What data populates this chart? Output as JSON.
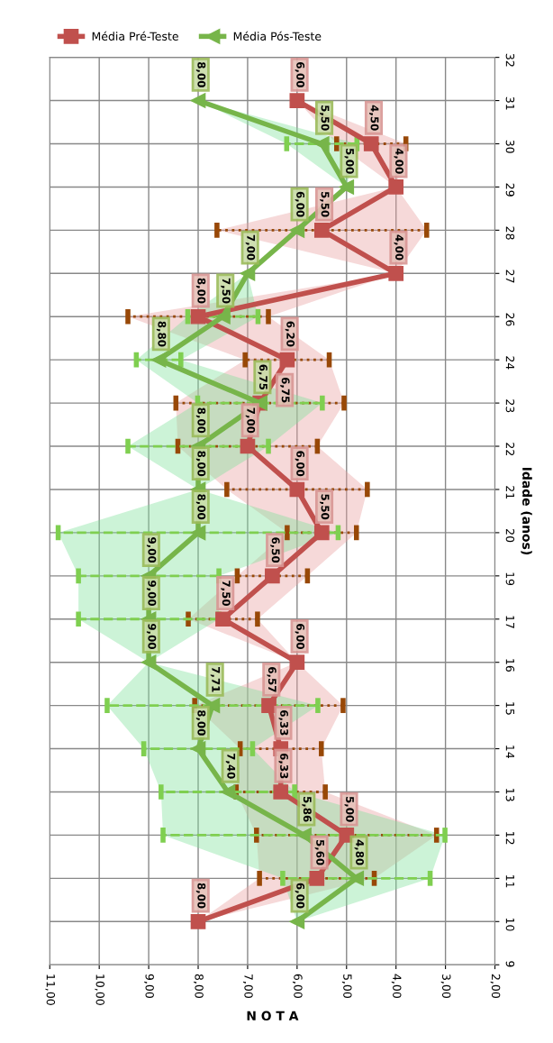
{
  "chart_data": {
    "type": "line",
    "orientation": "horizontal",
    "ylabel": "Idade (anos)",
    "xlabel": "N O T A",
    "categories": [
      "32",
      "31",
      "30",
      "29",
      "28",
      "27",
      "26",
      "24",
      "23",
      "22",
      "21",
      "20",
      "19",
      "17",
      "16",
      "15",
      "14",
      "13",
      "12",
      "11",
      "10",
      "9"
    ],
    "xlim": [
      11,
      2
    ],
    "xticks": [
      {
        "value": 11,
        "label": "11,00"
      },
      {
        "value": 10,
        "label": "10,00"
      },
      {
        "value": 9,
        "label": "9,00"
      },
      {
        "value": 8,
        "label": "8,00"
      },
      {
        "value": 7,
        "label": "7,00"
      },
      {
        "value": 6,
        "label": "6,00"
      },
      {
        "value": 5,
        "label": "5,00"
      },
      {
        "value": 4,
        "label": "4,00"
      },
      {
        "value": 3,
        "label": "3,00"
      },
      {
        "value": 2,
        "label": "2,00"
      }
    ],
    "grid": true,
    "legend": "top",
    "line_style": "solid",
    "series": [
      {
        "name": "Média Pré-Teste",
        "color": "#c0504d",
        "marker": "square",
        "values": [
          null,
          6.0,
          4.5,
          4.0,
          5.5,
          4.0,
          8.0,
          6.2,
          6.75,
          7.0,
          6.0,
          5.5,
          6.5,
          7.5,
          6.0,
          6.57,
          6.33,
          6.33,
          5.0,
          5.6,
          8.0,
          null
        ],
        "value_labels": [
          null,
          "6,00",
          "4,50",
          "4,00",
          "5,50",
          "4,00",
          "8,00",
          "6,20",
          "6,75",
          "7,00",
          "6,00",
          "5,50",
          "6,50",
          "7,50",
          "6,00",
          "6,57",
          "6,33",
          "6,33",
          "5,00",
          "5,60",
          "8,00",
          null
        ],
        "errors": [
          null,
          null,
          0.7,
          null,
          2.12,
          null,
          1.42,
          0.85,
          1.7,
          1.41,
          1.42,
          0.7,
          0.71,
          0.7,
          null,
          1.5,
          0.82,
          0.9,
          1.82,
          1.16,
          null,
          null
        ],
        "lower": [
          null,
          6.0,
          3.8,
          4.0,
          3.38,
          4.0,
          6.58,
          5.35,
          5.05,
          5.59,
          4.58,
          4.8,
          5.79,
          6.8,
          6.0,
          5.07,
          5.51,
          5.43,
          3.18,
          4.44,
          8.0,
          null
        ],
        "upper": [
          null,
          6.0,
          5.2,
          4.0,
          7.62,
          4.0,
          9.42,
          7.05,
          8.45,
          8.41,
          7.42,
          6.2,
          7.21,
          8.2,
          6.0,
          8.07,
          7.15,
          7.23,
          6.82,
          6.76,
          8.0,
          null
        ]
      },
      {
        "name": "Média Pós-Teste",
        "color": "#77b54a",
        "marker": "triangle",
        "values": [
          null,
          8.0,
          5.5,
          5.0,
          6.0,
          7.0,
          7.5,
          8.8,
          6.75,
          8.0,
          8.0,
          8.0,
          9.0,
          9.0,
          9.0,
          7.71,
          8.0,
          7.4,
          5.86,
          4.8,
          6.0,
          null
        ],
        "value_labels": [
          null,
          "8,00",
          "5,50",
          "5,00",
          "6,00",
          "7,00",
          "7,50",
          "8,80",
          "6,75",
          "8,00",
          "8,00",
          "8,00",
          "9,00",
          "9,00",
          "9,00",
          "7,71",
          "8,00",
          "7,40",
          "5,86",
          "4,80",
          "6,00",
          null
        ],
        "errors": [
          null,
          null,
          0.71,
          null,
          null,
          null,
          0.71,
          0.45,
          1.26,
          1.42,
          null,
          2.83,
          1.42,
          1.42,
          null,
          2.13,
          1.1,
          1.35,
          2.85,
          1.49,
          null,
          null
        ],
        "lower": [
          null,
          8.0,
          4.79,
          5.0,
          6.0,
          7.0,
          6.79,
          8.35,
          5.49,
          6.58,
          8.0,
          5.17,
          7.58,
          7.58,
          9.0,
          5.58,
          6.9,
          6.05,
          3.01,
          3.31,
          6.0,
          null
        ],
        "upper": [
          null,
          8.0,
          6.21,
          5.0,
          6.0,
          7.0,
          8.21,
          9.25,
          8.01,
          9.42,
          8.0,
          10.83,
          10.42,
          10.42,
          9.0,
          9.84,
          9.1,
          8.75,
          8.71,
          6.29,
          6.0,
          null
        ]
      }
    ]
  }
}
